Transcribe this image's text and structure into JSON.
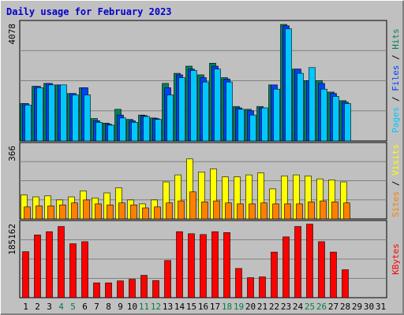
{
  "chart_data": {
    "type": "bar",
    "title": "Daily usage for February 2023",
    "x_labels": [
      "1",
      "2",
      "3",
      "4",
      "5",
      "6",
      "7",
      "8",
      "9",
      "10",
      "11",
      "12",
      "13",
      "14",
      "15",
      "16",
      "17",
      "18",
      "19",
      "20",
      "21",
      "22",
      "23",
      "24",
      "25",
      "26",
      "27",
      "28",
      "29",
      "30",
      "31"
    ],
    "weekend_days": [
      4,
      5,
      11,
      12,
      18,
      19,
      25,
      26
    ],
    "colors": {
      "title": "#0000cc",
      "panel_bg": "#c0c0c0",
      "hits": "#00805c",
      "files": "#0040ff",
      "pages": "#00c8ff",
      "visits": "#ffff00",
      "sites": "#ff8000",
      "kbytes": "#ff0000",
      "weekend_label": "#008040"
    },
    "panels": [
      {
        "id": "top",
        "axis_max_label": "4078",
        "ylim": [
          0,
          4078
        ],
        "legend": [
          "Pages",
          "Files",
          "Hits"
        ],
        "series": [
          {
            "name": "Hits",
            "values": [
              1300,
              1900,
              2000,
              1950,
              1650,
              1850,
              780,
              620,
              1100,
              750,
              900,
              800,
              2000,
              2350,
              2600,
              2300,
              2700,
              2200,
              1200,
              1100,
              1200,
              1950,
              4050,
              2500,
              2100,
              2100,
              1700,
              1400,
              0,
              0,
              0
            ]
          },
          {
            "name": "Files",
            "values": [
              1300,
              1900,
              2000,
              1950,
              1650,
              1850,
              700,
              580,
              900,
              700,
              880,
              780,
              1850,
              2300,
              2500,
              2200,
              2600,
              2150,
              1150,
              1050,
              1150,
              1950,
              4000,
              2500,
              2100,
              2000,
              1650,
              1350,
              0,
              0,
              0
            ]
          },
          {
            "name": "Pages",
            "values": [
              1250,
              1850,
              1950,
              1950,
              1600,
              1600,
              650,
              550,
              800,
              650,
              850,
              750,
              1600,
              2200,
              2450,
              2050,
              2500,
              2050,
              1100,
              900,
              1150,
              1800,
              3900,
              2350,
              2550,
              1800,
              1550,
              1300,
              0,
              0,
              0
            ]
          }
        ]
      },
      {
        "id": "middle",
        "axis_max_label": "366",
        "ylim": [
          0,
          366
        ],
        "legend": [
          "Sites",
          "Visits"
        ],
        "series": [
          {
            "name": "Visits",
            "values": [
              120,
              110,
              115,
              95,
              110,
              140,
              105,
              130,
              155,
              95,
              75,
              95,
              185,
              220,
              300,
              235,
              250,
              210,
              210,
              220,
              230,
              150,
              215,
              220,
              215,
              200,
              195,
              185,
              0,
              0,
              0
            ]
          },
          {
            "name": "Sites",
            "values": [
              60,
              65,
              65,
              70,
              80,
              95,
              75,
              70,
              80,
              70,
              55,
              60,
              80,
              90,
              135,
              85,
              90,
              80,
              75,
              75,
              80,
              75,
              75,
              75,
              85,
              90,
              85,
              80,
              0,
              0,
              0
            ]
          }
        ]
      },
      {
        "id": "bottom",
        "axis_max_label": "185162",
        "ylim": [
          0,
          185162
        ],
        "legend": [
          "KBytes"
        ],
        "series": [
          {
            "name": "KBytes",
            "values": [
              115000,
              157000,
              165000,
              178000,
              135000,
              140000,
              37000,
              37000,
              42000,
              46000,
              56000,
              43000,
              93000,
              165000,
              160000,
              158000,
              165000,
              163000,
              73000,
              50000,
              52000,
              114000,
              152000,
              178000,
              184000,
              140000,
              114000,
              70000,
              0,
              0,
              0
            ]
          }
        ]
      }
    ]
  }
}
